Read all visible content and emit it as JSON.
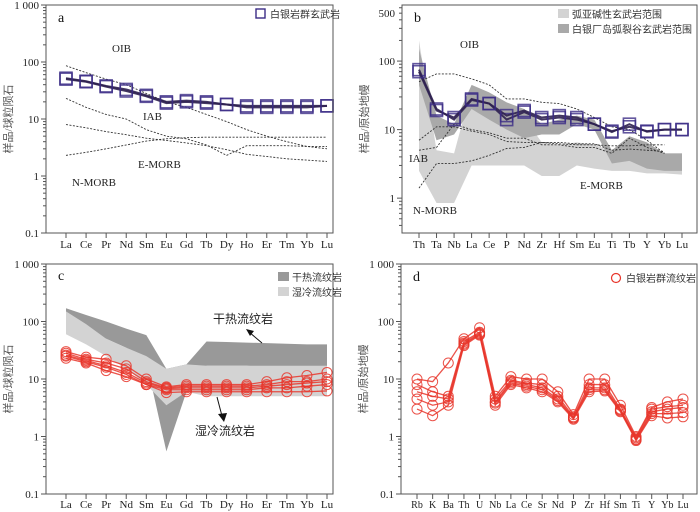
{
  "chart_data": [
    {
      "type": "line",
      "panel_label": "a",
      "yscale": "log",
      "ylim": [
        0.1,
        1000
      ],
      "ylabel": "样品/球粒陨石",
      "ytick_labels": [
        "1 000",
        "100",
        "10",
        "1",
        "0.1"
      ],
      "ytick_values": [
        1000,
        100,
        10,
        1,
        0.1
      ],
      "categories": [
        "La",
        "Ce",
        "Pr",
        "Nd",
        "Sm",
        "Eu",
        "Gd",
        "Tb",
        "Dy",
        "Ho",
        "Er",
        "Tm",
        "Yb",
        "Lu"
      ],
      "legend": [
        {
          "label": "白银岩群玄武岩",
          "marker": "square",
          "color": "#3b2c86"
        }
      ],
      "series": [
        {
          "name": "白银岩群玄武岩",
          "marker": "square",
          "color": "#3b2c86",
          "values": [
            52,
            46,
            38,
            33,
            26,
            20,
            21,
            20,
            18,
            17,
            17,
            17,
            17,
            17
          ]
        },
        {
          "marker": "square",
          "color": "#3b2c86",
          "values": [
            50,
            45,
            37,
            31,
            25,
            19,
            20,
            19,
            18,
            16,
            16,
            16,
            16,
            17
          ]
        }
      ],
      "reference_lines": [
        {
          "name": "OIB",
          "values": [
            86,
            65,
            50,
            40,
            28,
            20,
            16,
            12,
            9,
            6.5,
            5,
            4,
            3.3,
            3.0
          ]
        },
        {
          "name": "IAB",
          "values": [
            23,
            16,
            12,
            10,
            6.5,
            5,
            4.5,
            3.5,
            2.3,
            3.4,
            3.4,
            3.4,
            3.3,
            3.3
          ]
        },
        {
          "name": "E-MORB",
          "values": [
            8,
            7,
            6,
            5.3,
            4.6,
            4.2,
            3.8,
            3.4,
            2.9,
            2.4,
            2.2,
            2.0,
            1.9,
            1.8
          ]
        },
        {
          "name": "N-MORB",
          "values": [
            2.3,
            2.6,
            3.0,
            3.5,
            4.1,
            4.5,
            4.7,
            4.8,
            4.8,
            4.8,
            4.8,
            4.8,
            4.8,
            4.8
          ]
        }
      ],
      "grid": false,
      "legend_position": "top-right"
    },
    {
      "type": "line",
      "panel_label": "b",
      "yscale": "log",
      "ylim": [
        0.31,
        658
      ],
      "ylabel": "样品/原始地幔",
      "ytick_labels": [
        "500",
        "100",
        "10",
        "1"
      ],
      "ytick_values": [
        500,
        100,
        10,
        1
      ],
      "categories": [
        "Th",
        "Ta",
        "Nb",
        "La",
        "Ce",
        "P",
        "Nd",
        "Zr",
        "Hf",
        "Sm",
        "Eu",
        "Ti",
        "Tb",
        "Y",
        "Yb",
        "Lu"
      ],
      "legend": [
        {
          "label": "弧亚碱性玄武岩范围",
          "color": "#d3d3d3"
        },
        {
          "label": "白银厂岛弧裂谷玄武岩范围",
          "color": "#a9a9a9"
        }
      ],
      "ranges": [
        {
          "name": "弧亚碱性玄武岩范围",
          "color": "#d3d3d3",
          "upper": [
            200,
            5,
            4.5,
            40,
            30,
            18,
            15,
            6.5,
            6,
            6.5,
            6,
            4.8,
            5.8,
            4.5,
            4.5,
            4.5
          ],
          "lower": [
            2.5,
            0.85,
            0.85,
            3,
            3,
            3,
            3,
            2.1,
            2.1,
            3,
            2.7,
            2.5,
            2.5,
            2.3,
            2.3,
            2.2
          ]
        },
        {
          "name": "白银厂岛弧裂谷玄武岩范围",
          "color": "#a9a9a9",
          "upper": [
            150,
            16,
            12,
            45,
            35,
            25,
            20,
            12,
            14,
            16,
            14,
            5,
            8,
            6.5,
            4.5,
            4.5
          ],
          "lower": [
            45,
            7,
            8.5,
            20,
            14,
            10,
            7.5,
            8.5,
            8.5,
            12,
            10,
            3.2,
            3.5,
            2.7,
            2.5,
            2.5
          ]
        }
      ],
      "series": [
        {
          "marker": "square",
          "color": "#3b2c86",
          "values": [
            75,
            20,
            14,
            27,
            24,
            14,
            18,
            14,
            15,
            14,
            12,
            9.5,
            11,
            9.5,
            10,
            10
          ]
        },
        {
          "marker": "square",
          "color": "#3b2c86",
          "values": [
            70,
            19,
            15,
            28,
            24,
            16,
            19,
            15,
            16,
            15,
            12,
            9.2,
            12,
            9.3,
            10,
            10
          ]
        }
      ],
      "reference_lines": [
        {
          "name": "OIB",
          "values": [
            50,
            65,
            65,
            55,
            45,
            28,
            28,
            25,
            24,
            20,
            15,
            11,
            10,
            7,
            4.5,
            null
          ]
        },
        {
          "name": "IAB",
          "values": [
            7,
            11,
            11,
            9.5,
            8.5,
            6.7,
            6.5,
            6.5,
            6.2,
            6,
            6,
            5.8,
            5.8,
            6,
            6,
            null
          ]
        },
        {
          "name": "E-MORB",
          "values": [
            5,
            5.5,
            12,
            10,
            9,
            7.5,
            7.5,
            6,
            6,
            5.5,
            5.5,
            4.5,
            7.5,
            5.5,
            4.5,
            null
          ]
        },
        {
          "name": "N-MORB",
          "values": [
            1.4,
            3.2,
            3.2,
            3.5,
            4.2,
            5.3,
            5.5,
            6.5,
            6.5,
            6.2,
            6.2,
            5,
            5.2,
            5,
            4.8,
            null
          ]
        }
      ],
      "grid": false,
      "legend_position": "top-right"
    },
    {
      "type": "line",
      "panel_label": "c",
      "yscale": "log",
      "ylim": [
        0.1,
        1000
      ],
      "ylabel": "样品/球粒陨石",
      "ytick_labels": [
        "1 000",
        "100",
        "10",
        "1",
        "0.1"
      ],
      "ytick_values": [
        1000,
        100,
        10,
        1,
        0.1
      ],
      "categories": [
        "La",
        "Ce",
        "Pr",
        "Nd",
        "Sm",
        "Eu",
        "Gd",
        "Tb",
        "Dy",
        "Ho",
        "Er",
        "Tm",
        "Yb",
        "Lu"
      ],
      "legend": [
        {
          "label": "干热流纹岩",
          "color": "#999999"
        },
        {
          "label": "湿冷流纹岩",
          "color": "#d3d3d3"
        }
      ],
      "ranges": [
        {
          "name": "干热流纹岩",
          "color": "#999999",
          "upper": [
            170,
            130,
            100,
            75,
            58,
            15,
            18,
            45,
            44,
            43,
            42,
            41,
            40,
            40
          ],
          "lower": [
            100,
            70,
            50,
            35,
            20,
            0.55,
            6,
            17,
            17,
            17,
            16,
            16,
            16,
            16
          ]
        },
        {
          "name": "湿冷流纹岩",
          "color": "#d3d3d3",
          "upper": [
            150,
            90,
            50,
            35,
            25,
            15,
            18,
            17,
            17,
            17,
            17,
            17,
            17,
            17
          ],
          "lower": [
            60,
            40,
            25,
            15,
            8,
            3.5,
            6,
            5,
            5,
            5,
            5,
            5,
            5,
            5
          ]
        }
      ],
      "annotations": [
        "干热流纹岩",
        "湿冷流纹岩"
      ],
      "series": [
        {
          "marker": "circle",
          "color": "#e8352a",
          "values": [
            30,
            24,
            22,
            17,
            10,
            7.3,
            8,
            8,
            8,
            8,
            9,
            10.5,
            11.5,
            13
          ]
        },
        {
          "marker": "circle",
          "color": "#e8352a",
          "values": [
            28,
            22,
            19,
            15,
            9,
            7,
            7.5,
            7.5,
            7.5,
            7.5,
            8,
            9,
            9,
            10
          ]
        },
        {
          "marker": "circle",
          "color": "#e8352a",
          "values": [
            26,
            21,
            17,
            13,
            8.5,
            6.8,
            7,
            7,
            7,
            7,
            7.5,
            8,
            8.5,
            9
          ]
        },
        {
          "marker": "circle",
          "color": "#e8352a",
          "values": [
            25,
            20,
            16,
            12,
            8,
            6.5,
            6.5,
            6.5,
            6.5,
            6.5,
            7,
            7,
            7.5,
            8
          ]
        },
        {
          "marker": "circle",
          "color": "#e8352a",
          "values": [
            23,
            19,
            14,
            11,
            8,
            5.8,
            6,
            6,
            6,
            6,
            6,
            6,
            6,
            6.2
          ]
        }
      ],
      "grid": false,
      "legend_position": "top-right"
    },
    {
      "type": "line",
      "panel_label": "d",
      "yscale": "log",
      "ylim": [
        0.1,
        1000
      ],
      "ylabel": "样品/原始地幔",
      "ytick_labels": [
        "1 000",
        "100",
        "10",
        "1",
        "0.1"
      ],
      "ytick_values": [
        1000,
        100,
        10,
        1,
        0.1
      ],
      "categories": [
        "Rb",
        "K",
        "Ba",
        "Th",
        "U",
        "Nb",
        "La",
        "Ce",
        "Sr",
        "Nd",
        "P",
        "Zr",
        "Hf",
        "Sm",
        "Ti",
        "Y",
        "Yb",
        "Lu"
      ],
      "legend": [
        {
          "label": "白银岩群流纹岩",
          "marker": "circle",
          "color": "#e8352a"
        }
      ],
      "series": [
        {
          "name": "白银岩群流纹岩",
          "marker": "circle",
          "color": "#e8352a",
          "values": [
            10,
            9,
            19,
            50,
            78,
            5,
            11,
            10,
            10,
            6,
            2.4,
            10,
            10,
            3.5,
            1,
            3.2,
            4,
            4.5
          ]
        },
        {
          "marker": "circle",
          "color": "#e8352a",
          "values": [
            8,
            6,
            5,
            45,
            65,
            4.5,
            9.5,
            8.5,
            8,
            5,
            2.2,
            8,
            8,
            3,
            0.95,
            3,
            3.3,
            3.5
          ]
        },
        {
          "marker": "circle",
          "color": "#e8352a",
          "values": [
            6,
            5,
            4.5,
            42,
            62,
            4,
            9,
            8,
            7,
            4.5,
            2.1,
            7,
            7,
            2.9,
            0.9,
            2.7,
            3,
            3.2
          ]
        },
        {
          "marker": "circle",
          "color": "#e8352a",
          "values": [
            4.5,
            3.5,
            4,
            40,
            60,
            3.8,
            8.5,
            7.5,
            6.5,
            4.2,
            2.1,
            6.5,
            6.5,
            2.8,
            0.88,
            2.5,
            2.5,
            2.6
          ]
        },
        {
          "marker": "circle",
          "color": "#e8352a",
          "values": [
            3,
            2.3,
            3.5,
            38,
            58,
            3.5,
            8,
            7,
            6,
            4,
            2,
            6,
            6.2,
            2.7,
            0.85,
            2.3,
            2.1,
            2.2
          ]
        }
      ],
      "grid": false,
      "legend_position": "top-right"
    }
  ]
}
